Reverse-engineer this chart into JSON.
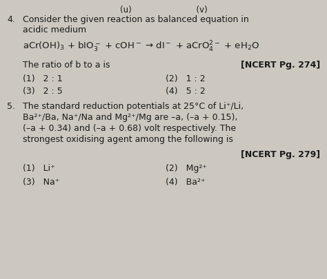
{
  "bg_color": "#ccc8c0",
  "text_color": "#1a1a1a",
  "fig_width": 4.74,
  "fig_height": 4.05,
  "top_partial": "(u)                         (v)",
  "q4_number": "4.",
  "q4_line1": "Consider the given reaction as balanced equation in",
  "q4_line2": "acidic medium",
  "q4_equation": "aCr(OH)$_3$ + bIO$_3^-$ + cOH$^-$ → dI$^-$ + aCrO$_4^{2-}$ + eH$_2$O",
  "q4_ratio": "The ratio of b to a is",
  "q4_ncert": "[NCERT Pg. 274]",
  "q4_opt1": "(1)   2 : 1",
  "q4_opt2": "(2)   1 : 2",
  "q4_opt3": "(3)   2 : 5",
  "q4_opt4": "(4)   5 : 2",
  "q5_number": "5.",
  "q5_line1": "The standard reduction potentials at 25°C of Li⁺/Li,",
  "q5_line2": "Ba²⁺/Ba, Na⁺/Na and Mg²⁺/Mg are –a, (–a + 0.15),",
  "q5_line3": "(–a + 0.34) and (–a + 0.68) volt respectively. The",
  "q5_line4": "strongest oxidising agent among the following is",
  "q5_ncert": "[NCERT Pg. 279]",
  "q5_opt1": "(1)   Li⁺",
  "q5_opt2": "(2)   Mg²⁺",
  "q5_opt3": "(3)   Na⁺",
  "q5_opt4": "(4)   Ba²⁺"
}
